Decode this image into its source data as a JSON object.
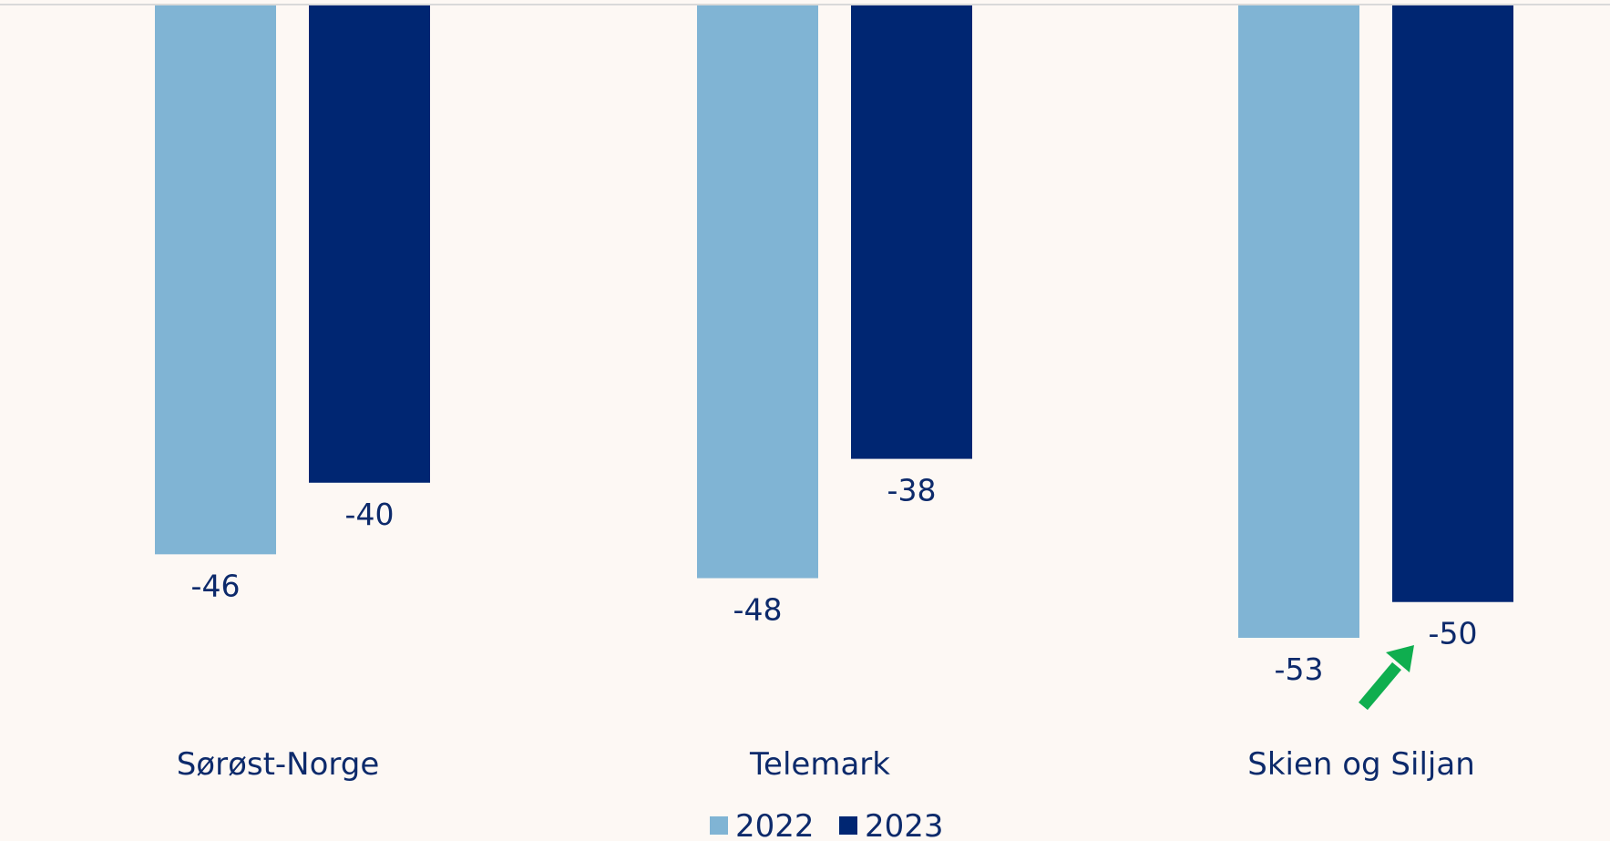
{
  "chart_data": {
    "type": "bar",
    "categories": [
      "Sørøst-Norge",
      "Telemark",
      "Skien og Siljan"
    ],
    "series": [
      {
        "name": "2022",
        "values": [
          -46,
          -48,
          -53
        ],
        "color": "#80b4d4"
      },
      {
        "name": "2023",
        "values": [
          -40,
          -38,
          -50
        ],
        "color": "#002672"
      }
    ],
    "value_labels": [
      [
        "-46",
        "-48",
        "-53"
      ],
      [
        "-40",
        "-38",
        "-50"
      ]
    ],
    "ylim": [
      -53,
      0
    ],
    "grid": false,
    "legend_position": "bottom",
    "annotation": {
      "type": "arrow",
      "color": "#0fae4f",
      "target": "Skien og Siljan 2023"
    },
    "title": "",
    "xlabel": "",
    "ylabel": ""
  }
}
